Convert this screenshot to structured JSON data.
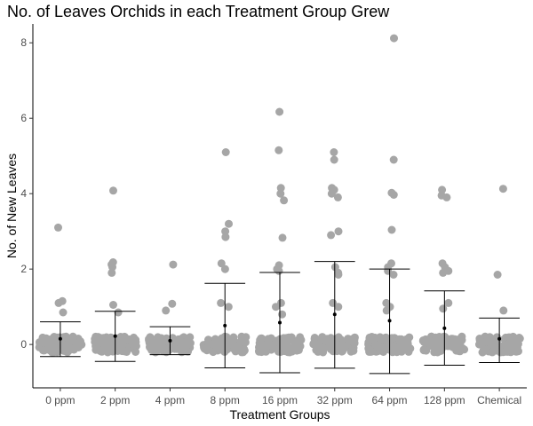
{
  "chart_data": {
    "type": "scatter",
    "title": "No. of Leaves Orchids in each Treatment Group Grew",
    "xlabel": "Treatment Groups",
    "ylabel": "No. of New Leaves",
    "categories": [
      "0 ppm",
      "2 ppm",
      "4 ppm",
      "8 ppm",
      "16 ppm",
      "32 ppm",
      "64 ppm",
      "128 ppm",
      "Chemical"
    ],
    "ylim": [
      -1.15,
      8.5
    ],
    "yticks": [
      0,
      2,
      4,
      6,
      8
    ],
    "grid": false,
    "point_color": "#a6a6a6",
    "summary_color": "#000000",
    "groups": [
      {
        "category": "0 ppm",
        "mean": 0.15,
        "err_low": -0.32,
        "err_high": 0.6,
        "outliers": [
          3.1,
          1.15,
          1.1,
          0.85
        ]
      },
      {
        "category": "2 ppm",
        "mean": 0.22,
        "err_low": -0.45,
        "err_high": 0.88,
        "outliers": [
          4.08,
          2.18,
          2.12,
          2.05,
          1.9,
          1.05,
          0.85
        ]
      },
      {
        "category": "4 ppm",
        "mean": 0.1,
        "err_low": -0.27,
        "err_high": 0.47,
        "outliers": [
          2.12,
          1.08,
          0.9
        ]
      },
      {
        "category": "8 ppm",
        "mean": 0.5,
        "err_low": -0.62,
        "err_high": 1.62,
        "outliers": [
          5.1,
          3.2,
          3.0,
          2.85,
          2.15,
          2.0,
          1.1,
          1.0
        ]
      },
      {
        "category": "16 ppm",
        "mean": 0.58,
        "err_low": -0.75,
        "err_high": 1.91,
        "outliers": [
          6.17,
          5.15,
          4.15,
          4.0,
          3.82,
          2.83,
          2.1,
          2.0,
          1.95,
          1.1,
          1.0,
          0.8
        ]
      },
      {
        "category": "32 ppm",
        "mean": 0.8,
        "err_low": -0.63,
        "err_high": 2.2,
        "outliers": [
          5.1,
          4.9,
          4.15,
          4.1,
          4.0,
          3.9,
          3.0,
          2.9,
          2.05,
          1.9,
          1.85,
          1.1,
          1.0
        ]
      },
      {
        "category": "64 ppm",
        "mean": 0.63,
        "err_low": -0.77,
        "err_high": 2.0,
        "outliers": [
          8.12,
          4.9,
          4.02,
          3.97,
          3.04,
          2.15,
          2.05,
          1.95,
          1.85,
          1.1,
          1.0,
          0.9
        ]
      },
      {
        "category": "128 ppm",
        "mean": 0.43,
        "err_low": -0.55,
        "err_high": 1.42,
        "outliers": [
          4.1,
          3.95,
          3.9,
          2.15,
          2.05,
          1.95,
          1.9,
          1.1,
          0.95
        ]
      },
      {
        "category": "Chemical",
        "mean": 0.15,
        "err_low": -0.48,
        "err_high": 0.7,
        "outliers": [
          4.13,
          1.85,
          0.9
        ]
      }
    ]
  }
}
